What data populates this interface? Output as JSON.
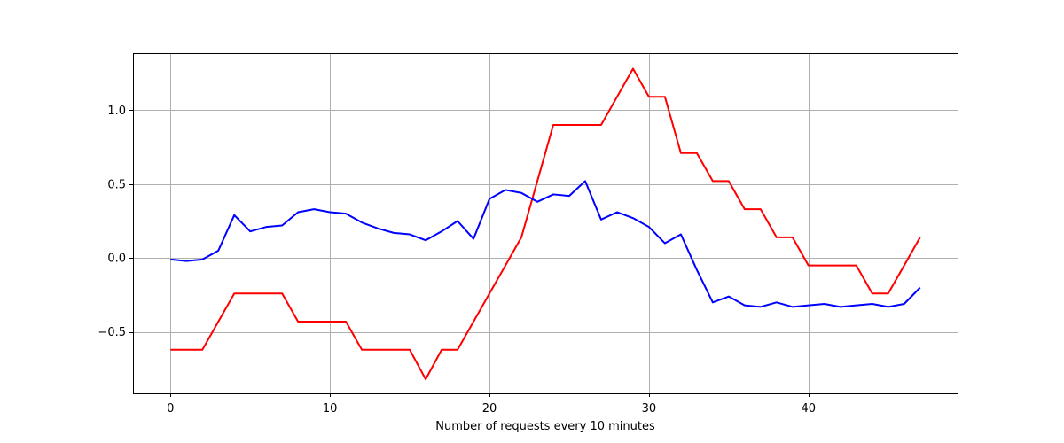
{
  "chart_data": {
    "type": "line",
    "title": "",
    "xlabel": "Number of requests every 10 minutes",
    "ylabel": "",
    "xlim": [
      -2.35,
      49.35
    ],
    "ylim": [
      -0.915,
      1.385
    ],
    "grid": true,
    "legend": "none",
    "x_ticks": [
      0,
      10,
      20,
      30,
      40
    ],
    "x_tick_labels": [
      "0",
      "10",
      "20",
      "30",
      "40"
    ],
    "y_ticks": [
      -0.5,
      0.0,
      0.5,
      1.0
    ],
    "y_tick_labels": [
      "−0.5",
      "0.0",
      "0.5",
      "1.0"
    ],
    "x": [
      0,
      1,
      2,
      3,
      4,
      5,
      6,
      7,
      8,
      9,
      10,
      11,
      12,
      13,
      14,
      15,
      16,
      17,
      18,
      19,
      20,
      21,
      22,
      23,
      24,
      25,
      26,
      27,
      28,
      29,
      30,
      31,
      32,
      33,
      34,
      35,
      36,
      37,
      38,
      39,
      40,
      41,
      42,
      43,
      44,
      45,
      46,
      47
    ],
    "series": [
      {
        "color": "#ff0000",
        "values": [
          -0.62,
          -0.62,
          -0.62,
          -0.43,
          -0.24,
          -0.24,
          -0.24,
          -0.24,
          -0.43,
          -0.43,
          -0.43,
          -0.43,
          -0.62,
          -0.62,
          -0.62,
          -0.62,
          -0.82,
          -0.62,
          -0.62,
          -0.43,
          -0.24,
          -0.05,
          0.14,
          0.52,
          0.9,
          0.9,
          0.9,
          0.9,
          1.09,
          1.28,
          1.09,
          1.09,
          0.71,
          0.71,
          0.52,
          0.52,
          0.33,
          0.33,
          0.14,
          0.14,
          -0.05,
          -0.05,
          -0.05,
          -0.05,
          -0.24,
          -0.24,
          -0.05,
          0.14
        ]
      },
      {
        "color": "#0000ff",
        "values": [
          -0.01,
          -0.02,
          -0.01,
          0.05,
          0.29,
          0.18,
          0.21,
          0.22,
          0.31,
          0.33,
          0.31,
          0.3,
          0.24,
          0.2,
          0.17,
          0.16,
          0.12,
          0.18,
          0.25,
          0.13,
          0.4,
          0.46,
          0.44,
          0.38,
          0.43,
          0.42,
          0.52,
          0.26,
          0.31,
          0.27,
          0.21,
          0.1,
          0.16,
          -0.08,
          -0.3,
          -0.26,
          -0.32,
          -0.33,
          -0.3,
          -0.33,
          -0.32,
          -0.31,
          -0.33,
          -0.32,
          -0.31,
          -0.33,
          -0.31,
          -0.2
        ]
      }
    ]
  }
}
